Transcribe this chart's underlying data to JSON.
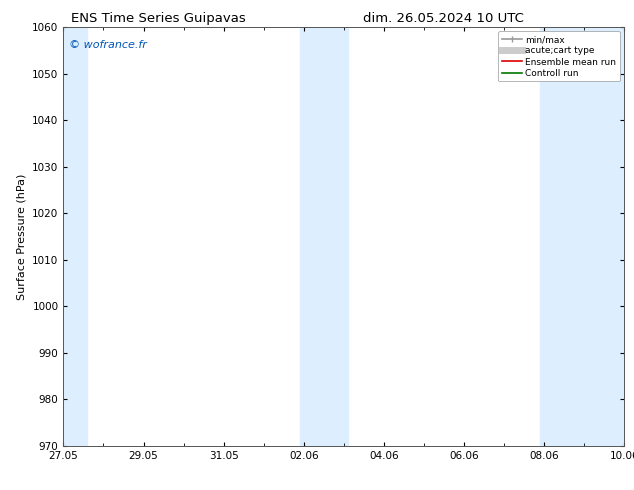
{
  "title_left": "ENS Time Series Guipavas",
  "title_right": "dim. 26.05.2024 10 UTC",
  "ylabel": "Surface Pressure (hPa)",
  "ylim": [
    970,
    1060
  ],
  "yticks": [
    970,
    980,
    990,
    1000,
    1010,
    1020,
    1030,
    1040,
    1050,
    1060
  ],
  "xtick_labels": [
    "27.05",
    "29.05",
    "31.05",
    "02.06",
    "04.06",
    "06.06",
    "08.06",
    "10.06"
  ],
  "xtick_positions": [
    0,
    2,
    4,
    6,
    8,
    10,
    12,
    14
  ],
  "x_total": 14,
  "shaded_bands": [
    {
      "x_start": -0.1,
      "x_end": 0.6
    },
    {
      "x_start": 5.9,
      "x_end": 7.1
    },
    {
      "x_start": 11.9,
      "x_end": 14.1
    }
  ],
  "band_color": "#ddeeff",
  "background_color": "#ffffff",
  "plot_bg_color": "#ffffff",
  "watermark": "© wofrance.fr",
  "watermark_color": "#0055bb",
  "legend_items": [
    {
      "label": "min/max",
      "color": "#999999",
      "lw": 1.2
    },
    {
      "label": "acute;cart type",
      "color": "#cccccc",
      "lw": 5
    },
    {
      "label": "Ensemble mean run",
      "color": "#dd0000",
      "lw": 1.2
    },
    {
      "label": "Controll run",
      "color": "#007700",
      "lw": 1.2
    }
  ],
  "title_fontsize": 9.5,
  "ylabel_fontsize": 8,
  "tick_fontsize": 7.5,
  "watermark_fontsize": 8,
  "legend_fontsize": 6.5
}
